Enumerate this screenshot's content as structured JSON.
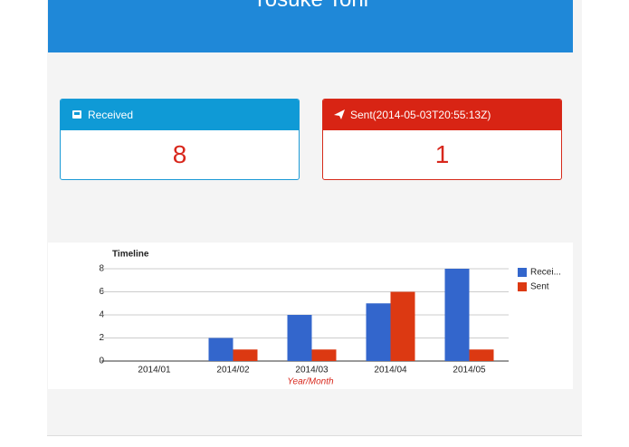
{
  "header": {
    "title": "Yosuke Tohi"
  },
  "cards": [
    {
      "label": "Received",
      "value": 8
    },
    {
      "label": "Sent(2014-05-03T20:55:13Z)",
      "value": 1
    }
  ],
  "chart_data": {
    "type": "bar",
    "title": "Timeline",
    "x_label": "Year/Month",
    "categories": [
      "2014/01",
      "2014/02",
      "2014/03",
      "2014/04",
      "2014/05"
    ],
    "series": [
      {
        "name": "Recei...",
        "color": "#3366cc",
        "values": [
          0,
          2,
          4,
          5,
          8
        ]
      },
      {
        "name": "Sent",
        "color": "#dc3912",
        "values": [
          0,
          1,
          1,
          6,
          1
        ]
      }
    ],
    "ylim": [
      0,
      8
    ],
    "yticks": [
      0,
      2,
      4,
      6,
      8
    ],
    "grid": true,
    "legend": "right"
  }
}
